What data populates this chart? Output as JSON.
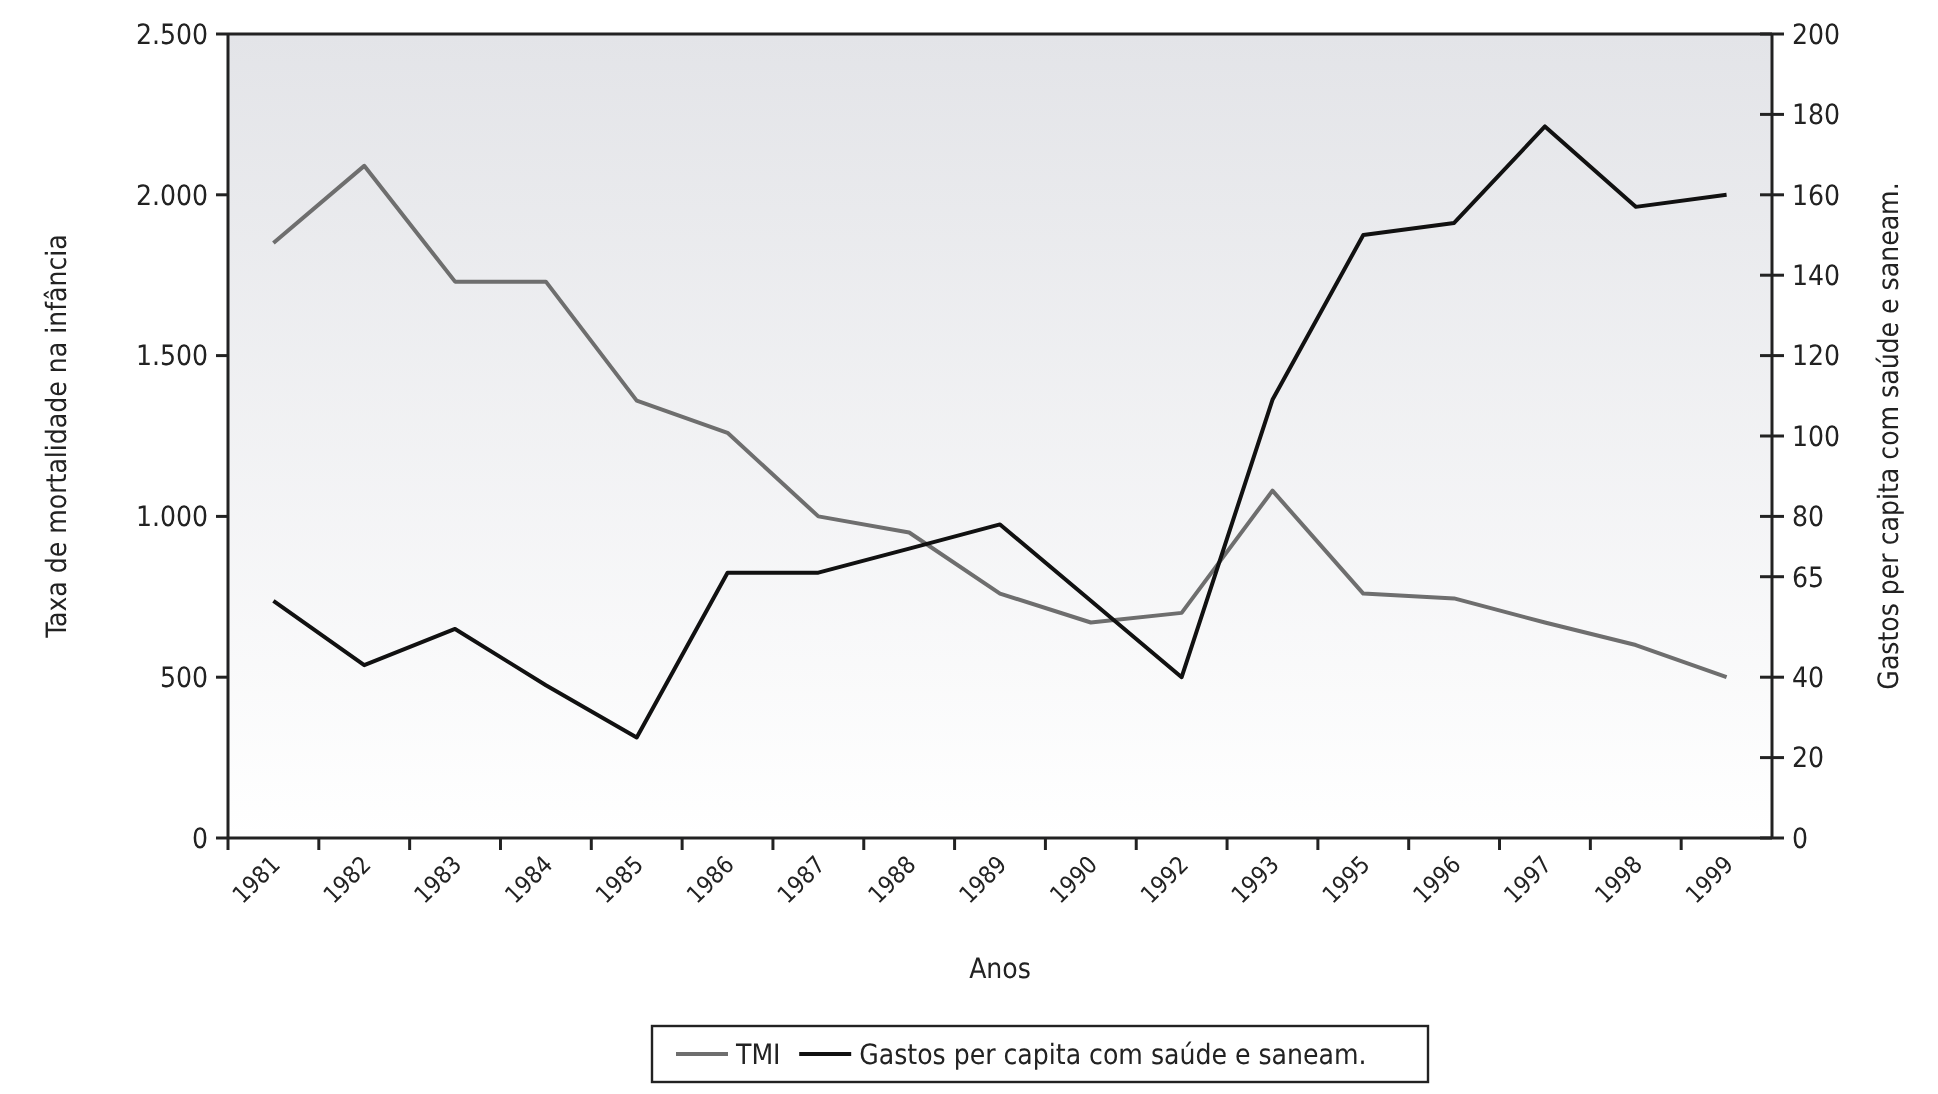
{
  "chart_data": {
    "type": "line",
    "xlabel": "Anos",
    "ylabel": "Taxa de mortalidade na infância",
    "y2label": "Gastos per capita com saúde e saneam.",
    "categories": [
      "1981",
      "1982",
      "1983",
      "1984",
      "1985",
      "1986",
      "1987",
      "1988",
      "1989",
      "1990",
      "1992",
      "1993",
      "1995",
      "1996",
      "1997",
      "1998",
      "1999"
    ],
    "series": [
      {
        "name": "TMI",
        "color": "#6e6e6e",
        "values": [
          1850,
          2090,
          1730,
          1730,
          1360,
          1260,
          1000,
          950,
          760,
          670,
          700,
          1080,
          760,
          745,
          670,
          600,
          500
        ]
      },
      {
        "name": "Gastos per capita com saúde e saneam.",
        "color": "#111111",
        "axis": "y2",
        "values": [
          59,
          43,
          52,
          38,
          25,
          66,
          66,
          72,
          78,
          59,
          40,
          109,
          150,
          153,
          177,
          157,
          160
        ]
      }
    ],
    "ylim": [
      0,
      2500
    ],
    "yticks": [
      0,
      {
        "value": 500,
        "label": "500"
      },
      {
        "value": 1000,
        "label": "1.000"
      },
      {
        "value": 1500,
        "label": "1.500"
      },
      {
        "value": 2000,
        "label": "2.000"
      },
      {
        "value": 2500,
        "label": "2.500"
      }
    ],
    "y2lim": [
      0,
      200
    ],
    "y2ticks": [
      0,
      20,
      40,
      65,
      80,
      100,
      120,
      140,
      160,
      180,
      200
    ],
    "legend": "bottom",
    "grid": false,
    "marker": "none",
    "line_style": "solid"
  }
}
